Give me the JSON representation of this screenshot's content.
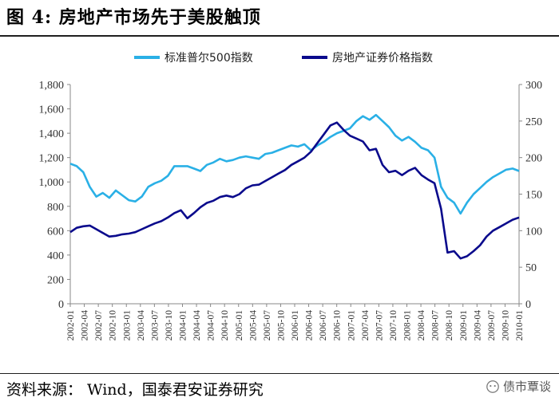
{
  "header": {
    "title": "图 4:  房地产市场先于美股触顶"
  },
  "footer": {
    "source": "资料来源： Wind，国泰君安证券研究",
    "watermark": "债市覃谈"
  },
  "chart_data": {
    "type": "line",
    "left_axis": {
      "ticks": [
        "0",
        "200",
        "400",
        "600",
        "800",
        "1,000",
        "1,200",
        "1,400",
        "1,600",
        "1,800"
      ],
      "range": [
        0,
        1800
      ]
    },
    "right_axis": {
      "ticks": [
        "0",
        "50",
        "100",
        "150",
        "200",
        "250",
        "300"
      ],
      "range": [
        0,
        300
      ]
    },
    "x_ticks": [
      "2002-01",
      "2002-04",
      "2002-07",
      "2002-10",
      "2003-01",
      "2003-04",
      "2003-07",
      "2003-10",
      "2004-01",
      "2004-04",
      "2004-07",
      "2004-10",
      "2005-01",
      "2005-04",
      "2005-07",
      "2005-10",
      "2006-01",
      "2006-04",
      "2006-07",
      "2006-10",
      "2007-01",
      "2007-04",
      "2007-07",
      "2007-10",
      "2008-01",
      "2008-04",
      "2008-07",
      "2008-10",
      "2009-01",
      "2009-04",
      "2009-07",
      "2009-10",
      "2010-01"
    ],
    "legend_position": "top",
    "series": [
      {
        "name": "标准普尔500指数",
        "axis": "left",
        "color": "#2ab0e6",
        "values": [
          1150,
          1130,
          1080,
          960,
          880,
          910,
          870,
          930,
          890,
          850,
          840,
          880,
          960,
          990,
          1010,
          1050,
          1130,
          1130,
          1130,
          1110,
          1090,
          1140,
          1160,
          1190,
          1170,
          1180,
          1200,
          1210,
          1200,
          1190,
          1230,
          1240,
          1260,
          1280,
          1300,
          1290,
          1310,
          1260,
          1300,
          1330,
          1370,
          1400,
          1420,
          1440,
          1500,
          1540,
          1510,
          1550,
          1500,
          1450,
          1380,
          1340,
          1370,
          1330,
          1280,
          1260,
          1200,
          960,
          870,
          830,
          740,
          830,
          900,
          950,
          1000,
          1040,
          1070,
          1100,
          1110,
          1090
        ]
      },
      {
        "name": "房地产证券价格指数",
        "axis": "right",
        "color": "#0a0a8c",
        "values": [
          98,
          104,
          106,
          107,
          102,
          97,
          92,
          93,
          95,
          96,
          98,
          102,
          106,
          110,
          113,
          118,
          124,
          128,
          117,
          124,
          132,
          138,
          141,
          146,
          148,
          146,
          150,
          158,
          162,
          163,
          168,
          173,
          178,
          183,
          190,
          195,
          200,
          208,
          220,
          232,
          244,
          248,
          238,
          230,
          226,
          222,
          210,
          212,
          190,
          180,
          182,
          176,
          182,
          186,
          176,
          170,
          165,
          130,
          70,
          72,
          62,
          65,
          72,
          80,
          92,
          100,
          105,
          110,
          115,
          118
        ]
      }
    ]
  }
}
